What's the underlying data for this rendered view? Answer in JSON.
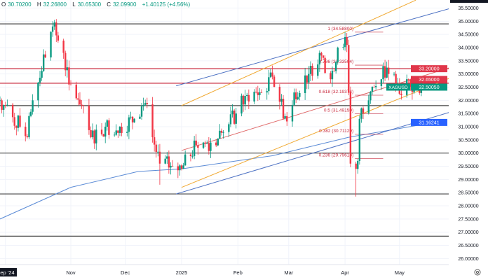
{
  "header": {
    "open_label": "O",
    "open": "30.70200",
    "high_label": "H",
    "high": "32.26800",
    "low_label": "L",
    "low": "30.65300",
    "close_label": "C",
    "close": "32.09900",
    "change": "+1.40125 (+4.56%)"
  },
  "colors": {
    "up": "#089981",
    "down": "#f23645",
    "ma": "#5b8bd6",
    "channel_blue": "#4a6fc2",
    "channel_orange": "#f0a830",
    "trend_red": "#e06a6a",
    "level_dark": "#444444",
    "level_red": "#c8283c",
    "fib": "#c8283c"
  },
  "chart_data": {
    "type": "candlestick",
    "symbol": "XAGUSD",
    "title": "",
    "ylim": [
      25.9,
      35.8
    ],
    "start_date": "2024-09-23",
    "end_date": "2025-05-14",
    "y_ticks": [
      "35.50000",
      "35.00000",
      "34.50000",
      "34.00000",
      "33.50000",
      "33.00000",
      "32.50000",
      "32.00000",
      "31.50000",
      "31.00000",
      "30.50000",
      "30.00000",
      "29.50000",
      "29.00000",
      "28.50000",
      "28.00000",
      "27.50000",
      "27.00000",
      "26.50000",
      "26.00000"
    ],
    "x_ticks": [
      {
        "label": "Sep '24",
        "date": "2024-09-26",
        "boxed": true
      },
      {
        "label": "Nov",
        "date": "2024-11-01"
      },
      {
        "label": "Dec",
        "date": "2024-12-01"
      },
      {
        "label": "2025",
        "date": "2025-01-01"
      },
      {
        "label": "Feb",
        "date": "2025-02-01"
      },
      {
        "label": "Mar",
        "date": "2025-03-01"
      },
      {
        "label": "Apr",
        "date": "2025-04-01"
      },
      {
        "label": "May",
        "date": "2025-05-01"
      }
    ],
    "close_anchors": [
      {
        "date": "2024-09-23",
        "close": 32.0
      },
      {
        "date": "2024-10-04",
        "close": 31.0
      },
      {
        "date": "2024-10-08",
        "close": 30.6
      },
      {
        "date": "2024-10-11",
        "close": 32.0
      },
      {
        "date": "2024-10-21",
        "close": 34.6
      },
      {
        "date": "2024-10-22",
        "close": 34.8,
        "high": 35.0
      },
      {
        "date": "2024-10-28",
        "close": 33.8
      },
      {
        "date": "2024-10-31",
        "close": 32.6
      },
      {
        "date": "2024-11-08",
        "close": 31.8
      },
      {
        "date": "2024-11-12",
        "close": 30.6
      },
      {
        "date": "2024-11-20",
        "close": 31.0
      },
      {
        "date": "2024-11-28",
        "close": 31.0
      },
      {
        "date": "2024-12-06",
        "close": 31.3
      },
      {
        "date": "2024-12-12",
        "close": 31.9
      },
      {
        "date": "2024-12-16",
        "close": 30.6
      },
      {
        "date": "2024-12-20",
        "close": 29.6,
        "low": 28.8
      },
      {
        "date": "2024-12-27",
        "close": 29.5
      },
      {
        "date": "2025-01-01",
        "close": 29.4
      },
      {
        "date": "2025-01-09",
        "close": 30.3
      },
      {
        "date": "2025-01-17",
        "close": 30.4
      },
      {
        "date": "2025-01-24",
        "close": 30.8
      },
      {
        "date": "2025-01-31",
        "close": 31.5
      },
      {
        "date": "2025-02-06",
        "close": 32.2
      },
      {
        "date": "2025-02-14",
        "close": 32.3
      },
      {
        "date": "2025-02-20",
        "close": 32.9
      },
      {
        "date": "2025-02-28",
        "close": 31.2
      },
      {
        "date": "2025-03-04",
        "close": 32.3
      },
      {
        "date": "2025-03-12",
        "close": 33.0
      },
      {
        "date": "2025-03-18",
        "close": 33.8
      },
      {
        "date": "2025-03-24",
        "close": 32.8
      },
      {
        "date": "2025-03-28",
        "close": 34.0
      },
      {
        "date": "2025-04-01",
        "close": 34.4,
        "high": 34.588
      },
      {
        "date": "2025-04-02",
        "close": 34.1
      },
      {
        "date": "2025-04-03",
        "close": 32.3
      },
      {
        "date": "2025-04-04",
        "close": 29.6
      },
      {
        "date": "2025-04-07",
        "close": 29.4,
        "low": 28.35
      },
      {
        "date": "2025-04-08",
        "close": 29.7
      },
      {
        "date": "2025-04-09",
        "close": 31.3
      },
      {
        "date": "2025-04-14",
        "close": 32.0
      },
      {
        "date": "2025-04-17",
        "close": 32.5
      },
      {
        "date": "2025-04-21",
        "close": 32.8
      },
      {
        "date": "2025-04-22",
        "close": 33.3
      },
      {
        "date": "2025-04-25",
        "close": 33.0
      },
      {
        "date": "2025-04-29",
        "close": 32.6
      },
      {
        "date": "2025-05-02",
        "close": 32.2
      },
      {
        "date": "2025-05-05",
        "close": 32.8
      },
      {
        "date": "2025-05-09",
        "close": 32.4
      },
      {
        "date": "2025-05-14",
        "close": 32.5
      }
    ],
    "moving_average": [
      {
        "date": "2024-09-23",
        "value": 27.5
      },
      {
        "date": "2024-11-01",
        "value": 28.7
      },
      {
        "date": "2024-12-08",
        "value": 29.3
      },
      {
        "date": "2025-01-01",
        "value": 29.4
      },
      {
        "date": "2025-02-20",
        "value": 29.9
      },
      {
        "date": "2025-04-03",
        "value": 30.6
      },
      {
        "date": "2025-05-20",
        "value": 31.16
      }
    ],
    "trendlines": [
      {
        "name": "channel-upper-blue",
        "color": "channel_blue",
        "from": {
          "date": "2024-12-29",
          "price": 32.55
        },
        "to": {
          "date": "2025-06-14",
          "price": 35.8
        }
      },
      {
        "name": "channel-upper-orange",
        "color": "channel_orange",
        "from": {
          "date": "2025-01-01",
          "price": 31.8
        },
        "to": {
          "date": "2025-05-10",
          "price": 35.8
        }
      },
      {
        "name": "channel-mid-red",
        "color": "trend_red",
        "from": {
          "date": "2025-01-01",
          "price": 30.1
        },
        "to": {
          "date": "2025-06-10",
          "price": 33.5
        }
      },
      {
        "name": "channel-lower-orange",
        "color": "channel_orange",
        "from": {
          "date": "2025-01-01",
          "price": 28.7
        },
        "to": {
          "date": "2025-06-14",
          "price": 33.3
        }
      },
      {
        "name": "channel-lower-blue",
        "color": "channel_blue",
        "from": {
          "date": "2024-12-29",
          "price": 28.45
        },
        "to": {
          "date": "2025-06-05",
          "price": 31.7
        }
      }
    ],
    "horizontal_levels": [
      {
        "price": 34.9,
        "color": "level_dark"
      },
      {
        "price": 33.2,
        "color": "level_red"
      },
      {
        "price": 32.65,
        "color": "level_red"
      },
      {
        "price": 31.8,
        "color": "level_dark"
      },
      {
        "price": 30.0,
        "color": "level_dark"
      },
      {
        "price": 28.45,
        "color": "level_dark"
      },
      {
        "price": 26.85,
        "color": "level_dark"
      }
    ],
    "fibonacci": [
      {
        "label": "1 (34.58800)",
        "price": 34.588
      },
      {
        "label": "0.786 (33.33504)",
        "price": 33.335
      },
      {
        "label": "0.618 (32.19374)",
        "price": 32.194
      },
      {
        "label": "0.5 (31.49150)",
        "price": 31.4915
      },
      {
        "label": "0.382 (30.71129)",
        "price": 30.711
      },
      {
        "label": "0.236 (29.79613)",
        "price": 29.796
      }
    ],
    "price_labels": [
      {
        "text": "33.20000",
        "price": 33.2,
        "bg": "#e0364a"
      },
      {
        "text": "32.65000",
        "price": 32.65,
        "bg": "#e0364a"
      },
      {
        "text": "32.50050",
        "price": 32.5005,
        "bg": "#089981",
        "tag": "XAGUSD"
      },
      {
        "text": "31.16241",
        "price": 31.16241,
        "bg": "#2962ff"
      }
    ]
  }
}
